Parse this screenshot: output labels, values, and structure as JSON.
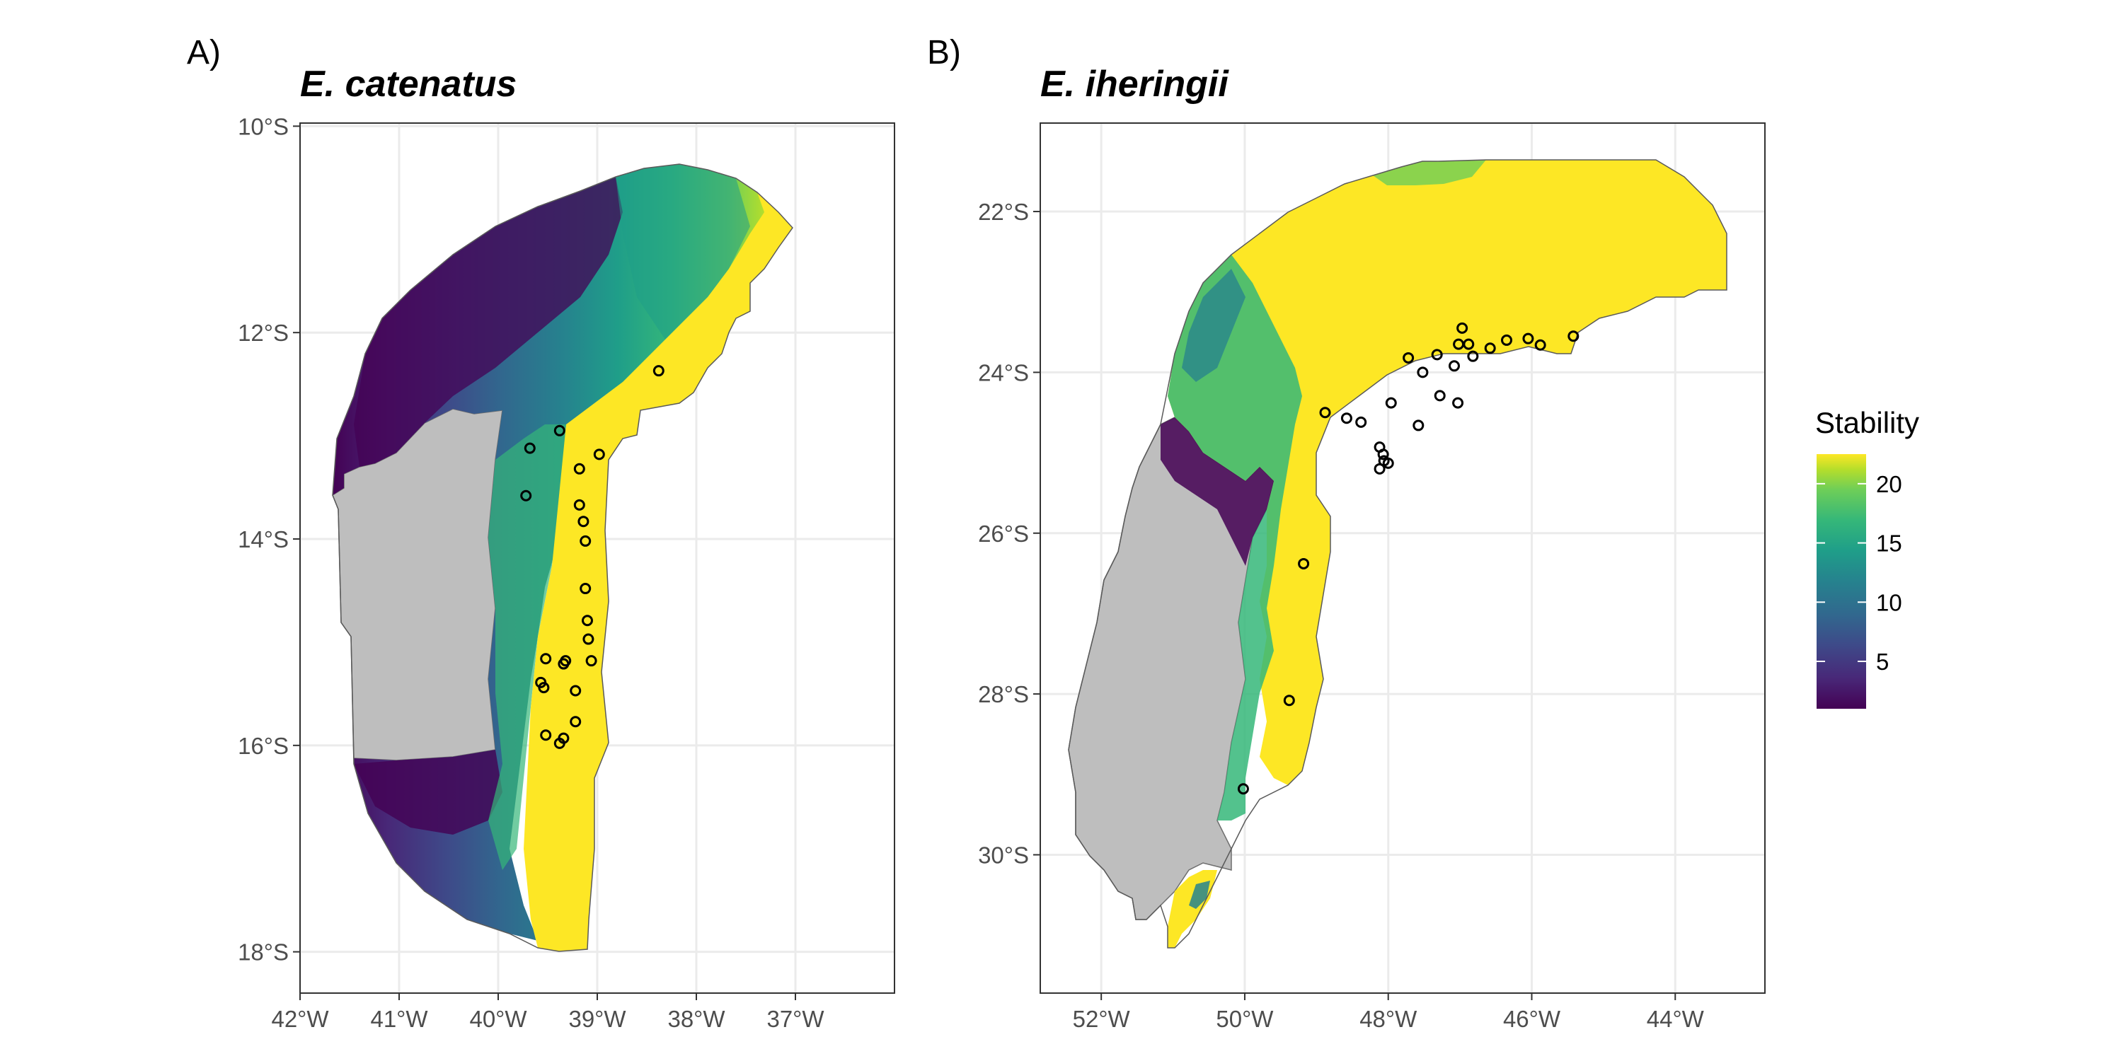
{
  "panels": [
    {
      "letter": "A)",
      "title": "E. catenatus",
      "x_ticks": [
        {
          "value": -42,
          "label": "42°W"
        },
        {
          "value": -41,
          "label": "41°W"
        },
        {
          "value": -40,
          "label": "40°W"
        },
        {
          "value": -39,
          "label": "39°W"
        },
        {
          "value": -38,
          "label": "38°W"
        },
        {
          "value": -37,
          "label": "37°W"
        }
      ],
      "y_ticks": [
        {
          "value": -10,
          "label": "10°S"
        },
        {
          "value": -12,
          "label": "12°S"
        },
        {
          "value": -14,
          "label": "14°S"
        },
        {
          "value": -16,
          "label": "16°S"
        },
        {
          "value": -18,
          "label": "18°S"
        }
      ],
      "xlim": [
        -42,
        -36.0
      ],
      "ylim": [
        -18.4,
        -9.97
      ],
      "occurrences": [
        [
          -38.38,
          -12.37
        ],
        [
          -39.68,
          -13.12
        ],
        [
          -39.38,
          -12.95
        ],
        [
          -39.18,
          -13.32
        ],
        [
          -38.98,
          -13.18
        ],
        [
          -39.72,
          -13.58
        ],
        [
          -39.18,
          -13.67
        ],
        [
          -39.14,
          -13.83
        ],
        [
          -39.12,
          -14.02
        ],
        [
          -39.12,
          -14.48
        ],
        [
          -39.1,
          -14.79
        ],
        [
          -39.09,
          -14.97
        ],
        [
          -39.06,
          -15.18
        ],
        [
          -39.52,
          -15.16
        ],
        [
          -39.32,
          -15.18
        ],
        [
          -39.34,
          -15.21
        ],
        [
          -39.57,
          -15.39
        ],
        [
          -39.54,
          -15.44
        ],
        [
          -39.22,
          -15.47
        ],
        [
          -39.22,
          -15.77
        ],
        [
          -39.52,
          -15.9
        ],
        [
          -39.34,
          -15.93
        ],
        [
          -39.38,
          -15.98
        ]
      ]
    },
    {
      "letter": "B)",
      "title": "E. iheringii",
      "x_ticks": [
        {
          "value": -52,
          "label": "52°W"
        },
        {
          "value": -50,
          "label": "50°W"
        },
        {
          "value": -48,
          "label": "48°W"
        },
        {
          "value": -46,
          "label": "46°W"
        },
        {
          "value": -44,
          "label": "44°W"
        }
      ],
      "y_ticks": [
        {
          "value": -22,
          "label": "22°S"
        },
        {
          "value": -24,
          "label": "24°S"
        },
        {
          "value": -26,
          "label": "26°S"
        },
        {
          "value": -28,
          "label": "28°S"
        },
        {
          "value": -30,
          "label": "30°S"
        }
      ],
      "xlim": [
        -52.85,
        -42.75
      ],
      "ylim": [
        -31.72,
        -20.9
      ],
      "occurrences": [
        [
          -45.42,
          -23.55
        ],
        [
          -46.05,
          -23.58
        ],
        [
          -45.88,
          -23.66
        ],
        [
          -46.35,
          -23.6
        ],
        [
          -46.58,
          -23.7
        ],
        [
          -46.88,
          -23.65
        ],
        [
          -46.97,
          -23.45
        ],
        [
          -47.02,
          -23.65
        ],
        [
          -46.82,
          -23.8
        ],
        [
          -47.32,
          -23.78
        ],
        [
          -47.08,
          -23.92
        ],
        [
          -47.72,
          -23.82
        ],
        [
          -47.52,
          -24.0
        ],
        [
          -47.28,
          -24.29
        ],
        [
          -47.03,
          -24.38
        ],
        [
          -47.96,
          -24.38
        ],
        [
          -47.58,
          -24.66
        ],
        [
          -48.38,
          -24.62
        ],
        [
          -48.58,
          -24.57
        ],
        [
          -48.88,
          -24.5
        ],
        [
          -48.12,
          -24.93
        ],
        [
          -48.07,
          -25.02
        ],
        [
          -48.06,
          -25.1
        ],
        [
          -48.0,
          -25.13
        ],
        [
          -48.12,
          -25.2
        ],
        [
          -49.18,
          -26.38
        ],
        [
          -49.38,
          -28.08
        ],
        [
          -50.02,
          -29.18
        ]
      ]
    }
  ],
  "legend": {
    "title": "Stability",
    "ticks": [
      5,
      10,
      15,
      20
    ],
    "range": [
      1,
      22.5
    ],
    "colors": [
      "#440154",
      "#482878",
      "#3e4a89",
      "#31688e",
      "#26828e",
      "#1f9e89",
      "#35b779",
      "#6ece58",
      "#b5de2b",
      "#fde725"
    ],
    "no_data_color": "#bebebe"
  }
}
